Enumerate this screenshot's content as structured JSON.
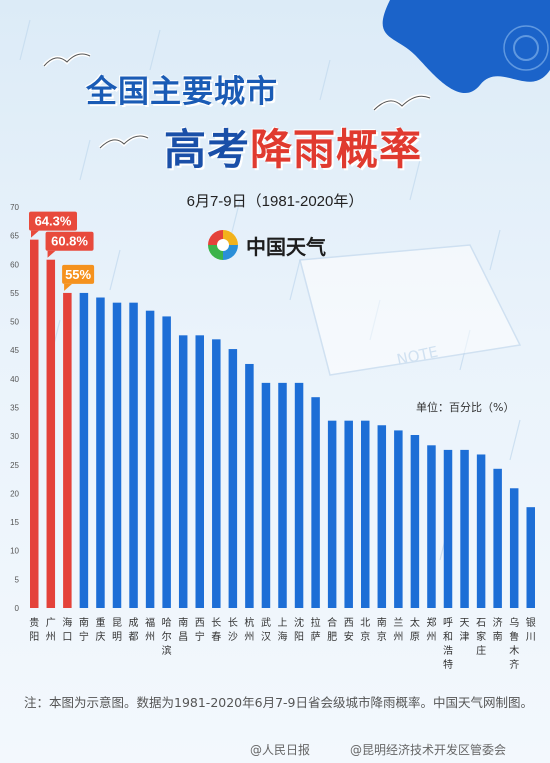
{
  "title_line1": "全国主要城市",
  "title_line2_a": "高考",
  "title_line2_b": "降雨概率",
  "subtitle": "6月7-9日（1981-2020年）",
  "brand": "中国天气",
  "unit_label": "单位：百分比（%）",
  "note": "注：本图为示意图。数据为1981-2020年6月7-9日省会级城市降雨概率。中国天气网制图。",
  "footer": {
    "source1": "@人民日报",
    "source2": "@昆明经济技术开发区管委会"
  },
  "colors": {
    "highlight": "#e4423a",
    "bar": "#1d6ed6",
    "label_bg": "#e84a3c",
    "label_bg2": "#f5921e"
  },
  "chart_data": {
    "type": "bar",
    "ylim": [
      0,
      70
    ],
    "yticks": [
      "0",
      "5",
      "10",
      "15",
      "20",
      "25",
      "30",
      "35",
      "40",
      "45",
      "50",
      "55",
      "60",
      "65",
      "70"
    ],
    "categories": [
      "贵阳",
      "广州",
      "海口",
      "南宁",
      "重庆",
      "昆明",
      "成都",
      "福州",
      "哈尔滨",
      "南昌",
      "西宁",
      "长春",
      "长沙",
      "杭州",
      "武汉",
      "上海",
      "沈阳",
      "拉萨",
      "合肥",
      "西安",
      "北京",
      "南京",
      "兰州",
      "太原",
      "郑州",
      "呼和浩特",
      "天津",
      "石家庄",
      "济南",
      "乌鲁木齐",
      "银川"
    ],
    "values": [
      64.3,
      60.8,
      55,
      55,
      54.2,
      53.3,
      53.3,
      51.9,
      50.9,
      47.6,
      47.6,
      46.9,
      45.2,
      42.6,
      39.3,
      39.3,
      39.3,
      36.8,
      32.7,
      32.7,
      32.7,
      31.9,
      31,
      30.2,
      28.4,
      27.6,
      27.6,
      26.8,
      24.3,
      20.9,
      17.6
    ],
    "highlight_labels": [
      "64.3%",
      "60.8%",
      "55%"
    ],
    "grid": false
  }
}
